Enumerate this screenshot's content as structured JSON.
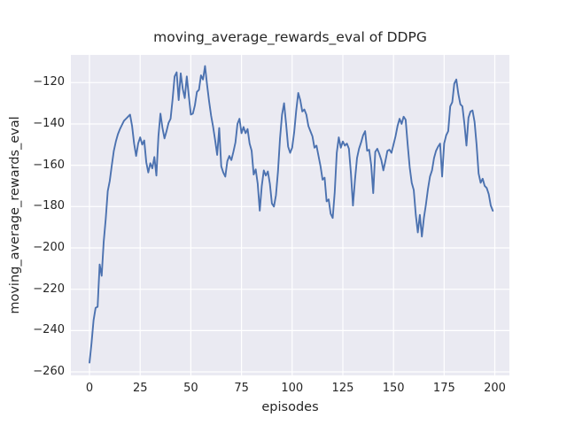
{
  "chart_data": {
    "type": "line",
    "title": "moving_average_rewards_eval of DDPG",
    "xlabel": "episodes",
    "ylabel": "moving_average_rewards_eval",
    "x_ticks": [
      0,
      25,
      50,
      75,
      100,
      125,
      150,
      175,
      200
    ],
    "y_ticks": [
      -120,
      -140,
      -160,
      -180,
      -200,
      -220,
      -240,
      -260
    ],
    "xlim": [
      -9.2,
      207.2
    ],
    "ylim": [
      -261.7,
      -106.6
    ],
    "grid": true,
    "legend_position": "none",
    "line_color": "#4c72b0",
    "axes_bg_color": "#eaeaf2",
    "grid_color": "#ffffff",
    "text_color": "#262626",
    "x_start": 0,
    "x_step": 1,
    "y": [
      -255.5,
      -246,
      -235,
      -229,
      -228.5,
      -208,
      -213.5,
      -197,
      -186,
      -172.5,
      -167.5,
      -160,
      -153,
      -148.5,
      -145,
      -142.5,
      -140.5,
      -138.5,
      -137.5,
      -136.5,
      -135.5,
      -141,
      -149.5,
      -155.5,
      -149.5,
      -146.5,
      -150,
      -148,
      -158.5,
      -163.5,
      -159,
      -161.5,
      -156,
      -165,
      -146,
      -135,
      -142,
      -147,
      -143.5,
      -139.5,
      -137.5,
      -128,
      -117,
      -115,
      -128.5,
      -115.5,
      -123,
      -127.5,
      -117,
      -126.5,
      -135.5,
      -135,
      -131,
      -124.5,
      -123.5,
      -116.5,
      -118.5,
      -112,
      -121,
      -129,
      -136,
      -141.5,
      -148,
      -155,
      -142,
      -160.5,
      -163.5,
      -165.5,
      -158,
      -155.5,
      -157.5,
      -153.5,
      -149,
      -140,
      -137.5,
      -144.5,
      -141.5,
      -144.5,
      -142.5,
      -149.5,
      -153,
      -164.5,
      -162,
      -169,
      -182,
      -170,
      -162.5,
      -165,
      -163,
      -169,
      -178.5,
      -180,
      -174.5,
      -163,
      -147,
      -135.5,
      -130,
      -140,
      -151,
      -154,
      -151.5,
      -144,
      -133.5,
      -125,
      -128.5,
      -134,
      -133,
      -135.5,
      -141,
      -143.5,
      -146,
      -151.5,
      -150.5,
      -155.5,
      -160.5,
      -167,
      -166,
      -177.5,
      -176.5,
      -183.5,
      -185.5,
      -173,
      -154,
      -146.5,
      -151.5,
      -148.5,
      -150.5,
      -149.5,
      -152,
      -164,
      -179.5,
      -167,
      -156.5,
      -152,
      -149,
      -145.5,
      -143.5,
      -153,
      -152.5,
      -160,
      -173.5,
      -153.5,
      -152,
      -154.5,
      -157.5,
      -162.5,
      -158,
      -153,
      -152.5,
      -154,
      -150,
      -146,
      -141,
      -137.5,
      -140,
      -136.5,
      -138,
      -150,
      -161,
      -168.5,
      -172,
      -184,
      -192.5,
      -184,
      -194.5,
      -185.5,
      -179,
      -171.5,
      -165.5,
      -162.5,
      -156.5,
      -153,
      -151,
      -149.5,
      -165.5,
      -149.5,
      -145.5,
      -143.5,
      -131.5,
      -129.5,
      -120.5,
      -118.5,
      -125.5,
      -130.5,
      -131.5,
      -140,
      -150.5,
      -137,
      -134,
      -133.5,
      -139,
      -150,
      -164,
      -168.5,
      -166.5,
      -170,
      -171,
      -174,
      -179.5,
      -182
    ]
  }
}
